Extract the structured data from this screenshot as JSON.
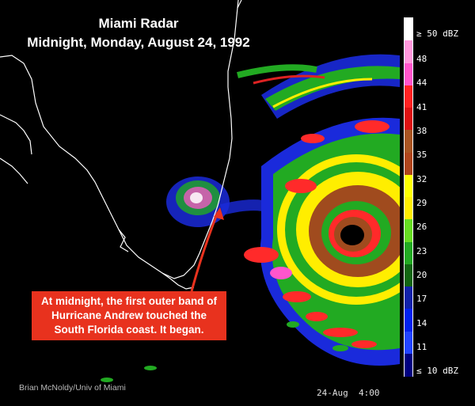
{
  "title": {
    "line1": "Miami Radar",
    "line2": "Midnight, Monday, August 24, 1992"
  },
  "callout": {
    "text": "At midnight, the first outer band of Hurricane Andrew touched the South Florida coast. It began."
  },
  "credit": "Brian McNoldy/Univ of Miami",
  "timestamp": "24-Aug  4:00",
  "scale": {
    "top_label": "≥ 50 dBZ",
    "bottom_label": "≤ 10 dBZ",
    "ticks": [
      "48",
      "44",
      "41",
      "38",
      "35",
      "32",
      "29",
      "26",
      "23",
      "20",
      "17",
      "14",
      "11"
    ],
    "colors": [
      "#ffffff",
      "#ff99dd",
      "#ff55cc",
      "#ff2222",
      "#dd1111",
      "#aa5522",
      "#b0451c",
      "#ffff00",
      "#ffee00",
      "#66dd22",
      "#22aa22",
      "#116611",
      "#1122aa",
      "#0022ee",
      "#2244ff",
      "#000080"
    ]
  },
  "colors": {
    "coast": "#ffffff",
    "callout_bg": "#e8321e",
    "arrow": "#e8321e",
    "eye": "#ff2a2a",
    "eye_ring": "#a04b1e"
  }
}
